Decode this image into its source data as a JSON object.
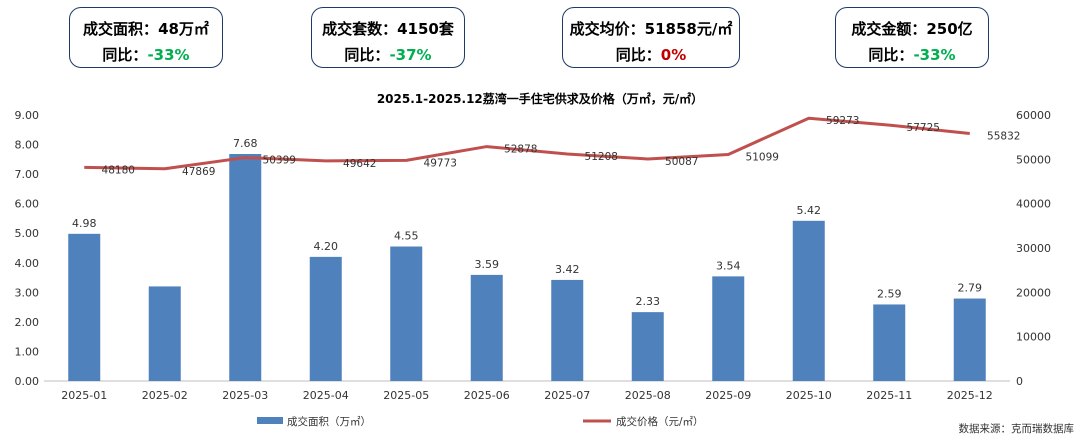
{
  "cards": [
    {
      "label": "成交面积：",
      "value": "48万㎡",
      "yoy_label": "同比：",
      "yoy": "-33%",
      "yoy_color": "#00b050"
    },
    {
      "label": "成交套数：",
      "value": "4150套",
      "yoy_label": "同比：",
      "yoy": "-37%",
      "yoy_color": "#00b050"
    },
    {
      "label": "成交均价：",
      "value": "51858元/㎡",
      "yoy_label": "同比：",
      "yoy": "0%",
      "yoy_color": "#c00000"
    },
    {
      "label": "成交金额：",
      "value": "250亿",
      "yoy_label": "同比：",
      "yoy": "-33%",
      "yoy_color": "#00b050"
    }
  ],
  "source": "数据来源：克而瑞数据库",
  "chart_data": {
    "type": "bar+line",
    "title": "2025.1-2025.12荔湾一手住宅供求及价格（万㎡，元/㎡）",
    "categories": [
      "2025-01",
      "2025-02",
      "2025-03",
      "2025-04",
      "2025-05",
      "2025-06",
      "2025-07",
      "2025-08",
      "2025-09",
      "2025-10",
      "2025-11",
      "2025-12"
    ],
    "series": [
      {
        "name": "成交面积（万㎡）",
        "type": "bar",
        "axis": "left",
        "color": "#4f81bd",
        "values": [
          4.98,
          3.2,
          7.68,
          4.2,
          4.55,
          3.59,
          3.42,
          2.33,
          3.54,
          5.42,
          2.59,
          2.79
        ],
        "labels": [
          "4.98",
          "",
          "7.68",
          "4.20",
          "4.55",
          "3.59",
          "3.42",
          "2.33",
          "3.54",
          "5.42",
          "2.59",
          "2.79"
        ]
      },
      {
        "name": "成交价格（元/㎡）",
        "type": "line",
        "axis": "right",
        "color": "#c0504d",
        "values": [
          48180,
          47869,
          50399,
          49642,
          49773,
          52878,
          51208,
          50087,
          51099,
          59273,
          57725,
          55832
        ],
        "labels": [
          "48180",
          "47869",
          "50399",
          "49642",
          "49773",
          "52878",
          "51208",
          "50087",
          "51099",
          "59273",
          "57725",
          "55832"
        ]
      }
    ],
    "y_left": {
      "min": 0,
      "max": 9,
      "ticks": [
        "0.00",
        "1.00",
        "2.00",
        "3.00",
        "4.00",
        "5.00",
        "6.00",
        "7.00",
        "8.00",
        "9.00"
      ]
    },
    "y_right": {
      "min": 0,
      "max": 60000,
      "ticks": [
        "0",
        "10000",
        "20000",
        "30000",
        "40000",
        "50000",
        "60000"
      ]
    },
    "legend": "bottom"
  }
}
